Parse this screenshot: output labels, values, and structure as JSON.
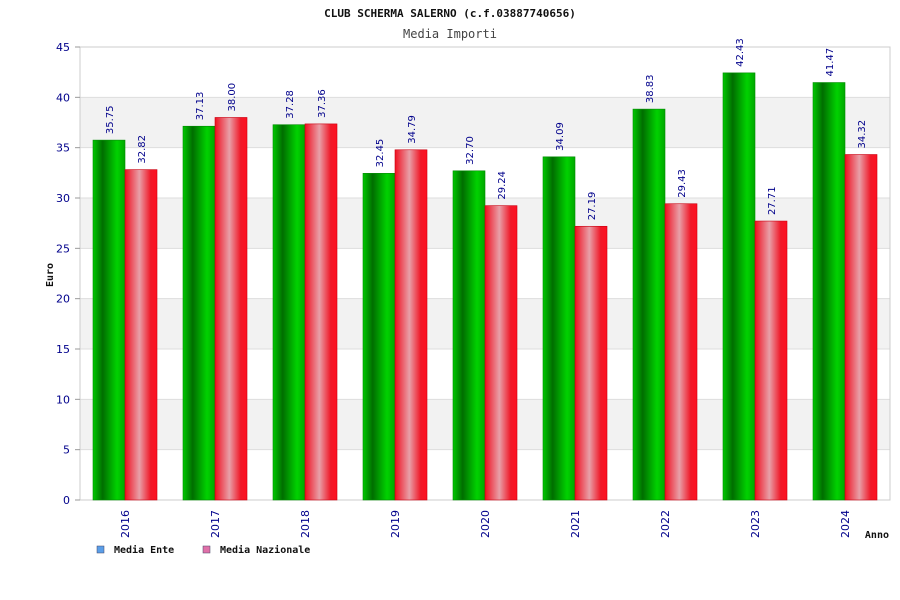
{
  "chart_data": {
    "type": "bar",
    "title": "CLUB SCHERMA SALERNO (c.f.03887740656)",
    "subtitle": "Media Importi",
    "ylabel": "Euro",
    "xlabel": "Anno",
    "categories": [
      "2016",
      "2017",
      "2018",
      "2019",
      "2020",
      "2021",
      "2022",
      "2023",
      "2024"
    ],
    "series": [
      {
        "name": "Media Ente",
        "values": [
          35.75,
          37.13,
          37.28,
          32.45,
          32.7,
          34.09,
          38.83,
          42.43,
          41.47
        ],
        "labels": [
          "35.75",
          "37.13",
          "37.28",
          "32.45",
          "32.70",
          "34.09",
          "38.83",
          "42.43",
          "41.47"
        ]
      },
      {
        "name": "Media Nazionale",
        "values": [
          32.82,
          38.0,
          37.36,
          34.79,
          29.24,
          27.19,
          29.43,
          27.71,
          34.32
        ],
        "labels": [
          "32.82",
          "38.00",
          "37.36",
          "34.79",
          "29.24",
          "27.19",
          "29.43",
          "27.71",
          "34.32"
        ]
      }
    ],
    "ylim": [
      0,
      45
    ],
    "yticks": [
      "0",
      "5",
      "10",
      "15",
      "20",
      "25",
      "30",
      "35",
      "40",
      "45"
    ],
    "grid": true,
    "legend_position": "bottom-left",
    "colors": {
      "ente": "#00a000",
      "nazionale": "#e8102a",
      "legend_ente": "#5a9ee8",
      "legend_nazionale": "#e070a8",
      "axis_text": "#00008b",
      "band": "#f2f2f2"
    }
  }
}
